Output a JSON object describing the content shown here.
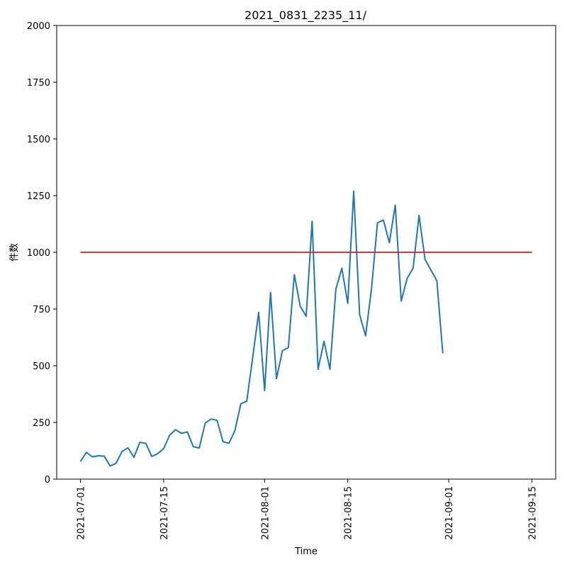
{
  "chart_data": {
    "type": "line",
    "title": "2021_0831_2235_11/",
    "xlabel": "Time",
    "ylabel": "件数",
    "x_tick_labels": [
      "2021-07-01",
      "2021-07-15",
      "2021-08-01",
      "2021-08-15",
      "2021-09-01",
      "2021-09-15"
    ],
    "y_tick_labels": [
      "0",
      "250",
      "500",
      "750",
      "1000",
      "1250",
      "1500",
      "1750",
      "2000"
    ],
    "xlim": [
      "2021-06-27",
      "2021-09-19"
    ],
    "ylim": [
      0,
      2000
    ],
    "grid": false,
    "colors": {
      "series": "#1f77b4",
      "threshold": "#e41a1c"
    },
    "series": [
      {
        "dates": [
          "2021-07-01",
          "2021-07-02",
          "2021-07-03",
          "2021-07-04",
          "2021-07-05",
          "2021-07-06",
          "2021-07-07",
          "2021-07-08",
          "2021-07-09",
          "2021-07-10",
          "2021-07-11",
          "2021-07-12",
          "2021-07-13",
          "2021-07-14",
          "2021-07-15",
          "2021-07-16",
          "2021-07-17",
          "2021-07-18",
          "2021-07-19",
          "2021-07-20",
          "2021-07-21",
          "2021-07-22",
          "2021-07-23",
          "2021-07-24",
          "2021-07-25",
          "2021-07-26",
          "2021-07-27",
          "2021-07-28",
          "2021-07-29",
          "2021-07-30",
          "2021-07-31",
          "2021-08-01",
          "2021-08-02",
          "2021-08-03",
          "2021-08-04",
          "2021-08-05",
          "2021-08-06",
          "2021-08-07",
          "2021-08-08",
          "2021-08-09",
          "2021-08-10",
          "2021-08-11",
          "2021-08-12",
          "2021-08-13",
          "2021-08-14",
          "2021-08-15",
          "2021-08-16",
          "2021-08-17",
          "2021-08-18",
          "2021-08-19",
          "2021-08-20",
          "2021-08-21",
          "2021-08-22",
          "2021-08-23",
          "2021-08-24",
          "2021-08-25",
          "2021-08-26",
          "2021-08-27",
          "2021-08-28",
          "2021-08-29",
          "2021-08-30",
          "2021-08-31"
        ],
        "values": [
          78,
          118,
          98,
          103,
          101,
          58,
          70,
          122,
          138,
          96,
          162,
          158,
          100,
          112,
          134,
          193,
          218,
          202,
          208,
          143,
          137,
          247,
          265,
          259,
          165,
          158,
          214,
          332,
          344,
          537,
          735,
          390,
          823,
          443,
          566,
          580,
          902,
          762,
          718,
          1137,
          484,
          608,
          484,
          838,
          930,
          775,
          1270,
          725,
          632,
          840,
          1130,
          1142,
          1043,
          1208,
          785,
          885,
          930,
          1163,
          970,
          922,
          875,
          555
        ]
      },
      {
        "dates": [
          "2021-07-01",
          "2021-09-15"
        ],
        "values": [
          1000,
          1000
        ]
      }
    ]
  }
}
